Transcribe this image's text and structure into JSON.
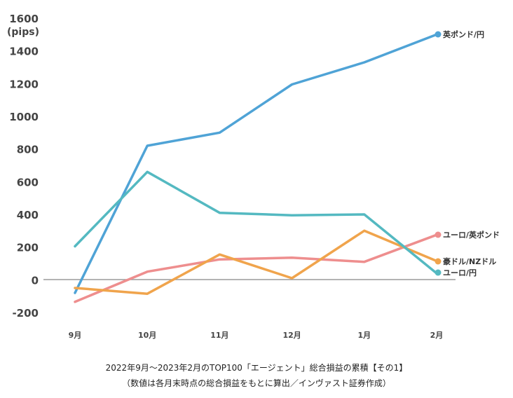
{
  "chart_data": {
    "type": "line",
    "unit_label": "(pips)",
    "categories": [
      "9月",
      "10月",
      "11月",
      "12月",
      "1月",
      "2月"
    ],
    "ylim": [
      -200,
      1600
    ],
    "yticks": [
      1600,
      1400,
      1200,
      1000,
      800,
      600,
      400,
      200,
      0,
      -200
    ],
    "ytick_labels": [
      "1600",
      "1400",
      "1200",
      "1000",
      "800",
      "600",
      "400",
      "200",
      "0",
      "-200"
    ],
    "grid": false,
    "series": [
      {
        "name": "英ポンド/円",
        "color": "#4fa3d6",
        "values": [
          -80,
          820,
          900,
          1195,
          1330,
          1500
        ]
      },
      {
        "name": "ユーロ/英ポンド",
        "color": "#ee8e8e",
        "values": [
          -135,
          50,
          125,
          135,
          110,
          275
        ]
      },
      {
        "name": "豪ドル/NZドル",
        "color": "#f0a44c",
        "values": [
          -50,
          -85,
          155,
          10,
          300,
          115
        ]
      },
      {
        "name": "ユーロ/円",
        "color": "#54b9c1",
        "values": [
          205,
          660,
          410,
          395,
          400,
          40
        ]
      }
    ],
    "caption_line1": "2022年9月～2023年2月のTOP100「エージェント」総合損益の累積【その1】",
    "caption_line2": "（数値は各月末時点の総合損益をもとに算出／インヴァスト証券作成）"
  }
}
